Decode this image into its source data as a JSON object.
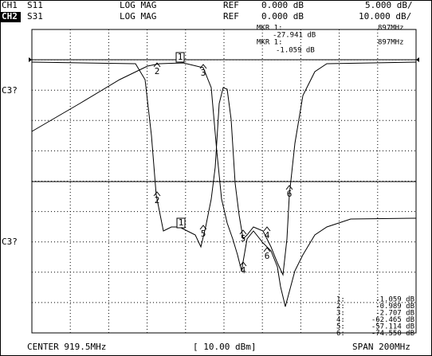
{
  "header": {
    "ch1": {
      "channel": "CH1",
      "param": "S11",
      "format": "LOG MAG",
      "ref_label": "REF",
      "ref": "0.000 dB",
      "scale": "5.000 dB/"
    },
    "ch2": {
      "channel": "CH2",
      "param": "S31",
      "format": "LOG MAG",
      "ref_label": "REF",
      "ref": "0.000 dB",
      "scale": "10.000 dB/"
    }
  },
  "readout": [
    {
      "label": "MKR 1:",
      "value": "-27.941 dB",
      "freq": "897MHz"
    },
    {
      "label": "MKR 1:",
      "value": "-1.059 dB",
      "freq": "897MHz"
    }
  ],
  "side_labels": [
    "C3?",
    "C3?"
  ],
  "markers": [
    "1",
    "2",
    "3",
    "2",
    "1",
    "5",
    "5",
    "4",
    "4",
    "6",
    "6"
  ],
  "marker_list": [
    {
      "label": "1:",
      "value": "-1.059 dB"
    },
    {
      "label": "2:",
      "value": "-0.989 dB"
    },
    {
      "label": "3:",
      "value": "-2.707 dB"
    },
    {
      "label": "4:",
      "value": "-62.465 dB"
    },
    {
      "label": "5:",
      "value": "-57.114 dB"
    },
    {
      "label": "6:",
      "value": "-74.550 dB"
    }
  ],
  "footer": {
    "center": "CENTER 919.5MHz",
    "power": "[ 10.00 dBm]",
    "span": "SPAN 200MHz"
  }
}
